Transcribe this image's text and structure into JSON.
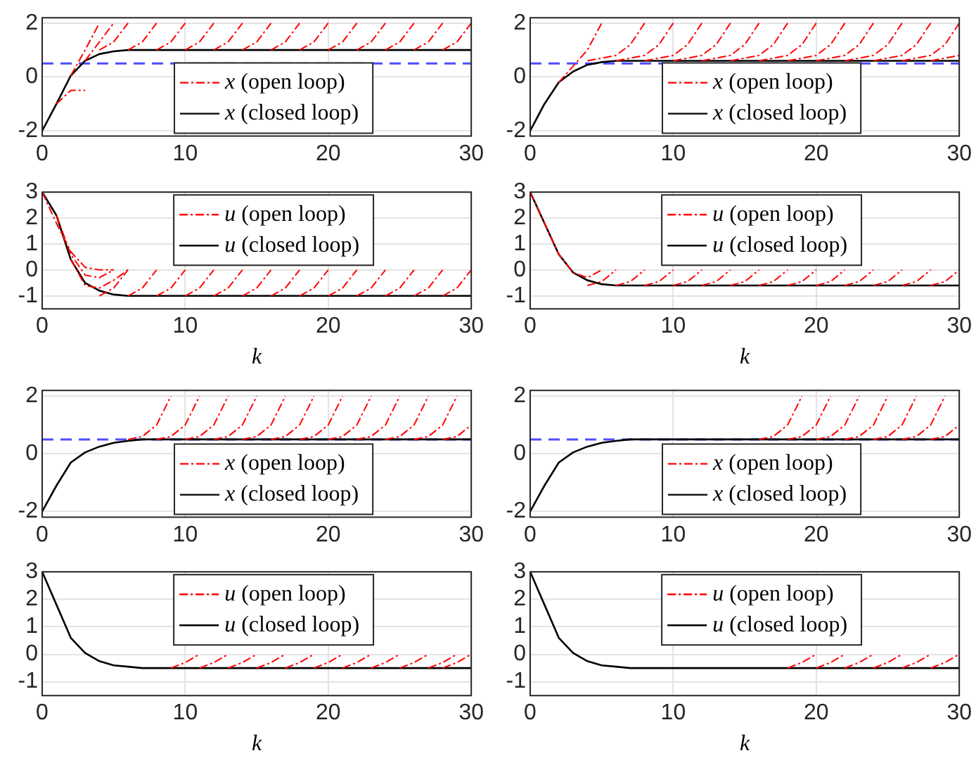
{
  "chart_data": [
    {
      "type": "line",
      "xlim": [
        0,
        30
      ],
      "xticks": [
        0,
        10,
        20,
        30
      ],
      "ylim": [
        -2.2,
        2.2
      ],
      "yticks": [
        -2,
        0,
        2
      ],
      "grid": true,
      "legend": "bottom",
      "ref_lines": [
        {
          "axis": "y",
          "value": 0.5,
          "color": "#4d4dff",
          "line_style": "dashed"
        }
      ],
      "series": [
        {
          "name": "x (open loop)",
          "color": "#ff0000",
          "line_style": "dashed",
          "x": [
            1,
            2,
            3
          ],
          "values": [
            -1,
            -0.5,
            -0.5
          ]
        },
        {
          "color": "#ff0000",
          "line_style": "dashed",
          "x": [
            2,
            3,
            4
          ],
          "values": [
            0.05,
            1,
            2
          ]
        },
        {
          "color": "#ff0000",
          "line_style": "dashed",
          "x": [
            3,
            4,
            5
          ],
          "values": [
            0.6,
            1.3,
            2
          ]
        },
        {
          "color": "#ff0000",
          "line_style": "dashed",
          "x": [
            4,
            5,
            6
          ],
          "values": [
            1,
            1.3,
            2
          ]
        },
        {
          "color": "#ff0000",
          "line_style": "dashed",
          "x": [
            6,
            7,
            8
          ],
          "values": [
            1,
            1.3,
            2
          ]
        },
        {
          "color": "#ff0000",
          "line_style": "dashed",
          "x": [
            8,
            9,
            10
          ],
          "values": [
            1,
            1.3,
            2
          ]
        },
        {
          "color": "#ff0000",
          "line_style": "dashed",
          "x": [
            10,
            11,
            12
          ],
          "values": [
            1,
            1.3,
            2
          ]
        },
        {
          "color": "#ff0000",
          "line_style": "dashed",
          "x": [
            12,
            13,
            14
          ],
          "values": [
            1,
            1.3,
            2
          ]
        },
        {
          "color": "#ff0000",
          "line_style": "dashed",
          "x": [
            14,
            15,
            16
          ],
          "values": [
            1,
            1.3,
            2
          ]
        },
        {
          "color": "#ff0000",
          "line_style": "dashed",
          "x": [
            16,
            17,
            18
          ],
          "values": [
            1,
            1.3,
            2
          ]
        },
        {
          "color": "#ff0000",
          "line_style": "dashed",
          "x": [
            18,
            19,
            20
          ],
          "values": [
            1,
            1.3,
            2
          ]
        },
        {
          "color": "#ff0000",
          "line_style": "dashed",
          "x": [
            20,
            21,
            22
          ],
          "values": [
            1,
            1.3,
            2
          ]
        },
        {
          "color": "#ff0000",
          "line_style": "dashed",
          "x": [
            22,
            23,
            24
          ],
          "values": [
            1,
            1.3,
            2
          ]
        },
        {
          "color": "#ff0000",
          "line_style": "dashed",
          "x": [
            24,
            25,
            26
          ],
          "values": [
            1,
            1.3,
            2
          ]
        },
        {
          "color": "#ff0000",
          "line_style": "dashed",
          "x": [
            26,
            27,
            28
          ],
          "values": [
            1,
            1.3,
            2
          ]
        },
        {
          "color": "#ff0000",
          "line_style": "dashed",
          "x": [
            28,
            29,
            30
          ],
          "values": [
            1,
            1.3,
            2
          ]
        },
        {
          "name": "x (closed loop)",
          "color": "#000000",
          "line_style": "solid",
          "x": [
            0,
            1,
            2,
            3,
            4,
            5,
            6,
            30
          ],
          "values": [
            -2,
            -1,
            0.05,
            0.6,
            0.85,
            0.95,
            1,
            1
          ]
        }
      ]
    },
    {
      "type": "line",
      "xlim": [
        0,
        30
      ],
      "xticks": [
        0,
        10,
        20,
        30
      ],
      "ylim": [
        -2.2,
        2.2
      ],
      "yticks": [
        -2,
        0,
        2
      ],
      "grid": true,
      "legend": "bottom",
      "ref_lines": [
        {
          "axis": "y",
          "value": 0.5,
          "color": "#4d4dff",
          "line_style": "dashed"
        }
      ],
      "series": [
        {
          "name": "x (open loop)",
          "color": "#ff0000",
          "line_style": "dashed",
          "x": [
            2,
            3,
            4,
            5
          ],
          "values": [
            -0.2,
            0.4,
            1,
            2
          ]
        },
        {
          "color": "#ff0000",
          "line_style": "dashed",
          "x": [
            4,
            6,
            7,
            8
          ],
          "values": [
            0.6,
            0.8,
            1.2,
            2
          ]
        },
        {
          "color": "#ff0000",
          "line_style": "dashed",
          "x": [
            6,
            8,
            9,
            10
          ],
          "values": [
            0.6,
            0.8,
            1.2,
            2
          ]
        },
        {
          "color": "#ff0000",
          "line_style": "dashed",
          "x": [
            8,
            10,
            11,
            12
          ],
          "values": [
            0.6,
            0.8,
            1.2,
            2
          ]
        },
        {
          "color": "#ff0000",
          "line_style": "dashed",
          "x": [
            10,
            12,
            13,
            14
          ],
          "values": [
            0.6,
            0.8,
            1.2,
            2
          ]
        },
        {
          "color": "#ff0000",
          "line_style": "dashed",
          "x": [
            12,
            14,
            15,
            16
          ],
          "values": [
            0.6,
            0.8,
            1.2,
            2
          ]
        },
        {
          "color": "#ff0000",
          "line_style": "dashed",
          "x": [
            14,
            16,
            17,
            18
          ],
          "values": [
            0.6,
            0.8,
            1.2,
            2
          ]
        },
        {
          "color": "#ff0000",
          "line_style": "dashed",
          "x": [
            16,
            18,
            19,
            20
          ],
          "values": [
            0.6,
            0.8,
            1.2,
            2
          ]
        },
        {
          "color": "#ff0000",
          "line_style": "dashed",
          "x": [
            18,
            20,
            21,
            22
          ],
          "values": [
            0.6,
            0.8,
            1.2,
            2
          ]
        },
        {
          "color": "#ff0000",
          "line_style": "dashed",
          "x": [
            20,
            22,
            23,
            24
          ],
          "values": [
            0.6,
            0.8,
            1.2,
            2
          ]
        },
        {
          "color": "#ff0000",
          "line_style": "dashed",
          "x": [
            22,
            24,
            25,
            26
          ],
          "values": [
            0.6,
            0.8,
            1.2,
            2
          ]
        },
        {
          "color": "#ff0000",
          "line_style": "dashed",
          "x": [
            24,
            26,
            27,
            28
          ],
          "values": [
            0.6,
            0.8,
            1.2,
            2
          ]
        },
        {
          "color": "#ff0000",
          "line_style": "dashed",
          "x": [
            26,
            28,
            29,
            30
          ],
          "values": [
            0.6,
            0.8,
            1.2,
            2
          ]
        },
        {
          "color": "#ff0000",
          "line_style": "dashed",
          "x": [
            28,
            30
          ],
          "values": [
            0.6,
            0.8
          ]
        },
        {
          "name": "x (closed loop)",
          "color": "#000000",
          "line_style": "solid",
          "x": [
            0,
            1,
            2,
            3,
            4,
            5,
            6,
            30
          ],
          "values": [
            -2,
            -1,
            -0.2,
            0.2,
            0.45,
            0.55,
            0.6,
            0.6
          ]
        }
      ]
    },
    {
      "type": "line",
      "xlabel": "k",
      "xlim": [
        0,
        30
      ],
      "xticks": [
        0,
        10,
        20,
        30
      ],
      "ylim": [
        -1.5,
        3
      ],
      "yticks": [
        -1,
        0,
        1,
        2,
        3
      ],
      "grid": true,
      "legend": "top",
      "series": [
        {
          "name": "u (open loop)",
          "color": "#ff0000",
          "line_style": "dashed",
          "x": [
            0,
            1,
            2,
            3,
            4,
            5
          ],
          "values": [
            3,
            1.8,
            0.7,
            0.1,
            0,
            0
          ]
        },
        {
          "color": "#ff0000",
          "line_style": "dashed",
          "x": [
            1,
            2,
            3,
            4,
            5
          ],
          "values": [
            2.1,
            0.6,
            -0.2,
            -0.3,
            0
          ]
        },
        {
          "color": "#ff0000",
          "line_style": "dashed",
          "x": [
            2,
            3,
            4,
            5,
            6
          ],
          "values": [
            0.4,
            -0.6,
            -0.7,
            -0.4,
            0
          ]
        },
        {
          "color": "#ff0000",
          "line_style": "dashed",
          "x": [
            4,
            5,
            6
          ],
          "values": [
            -1,
            -0.7,
            0
          ]
        },
        {
          "color": "#ff0000",
          "line_style": "dashed",
          "x": [
            6,
            7,
            8
          ],
          "values": [
            -1,
            -0.7,
            0
          ]
        },
        {
          "color": "#ff0000",
          "line_style": "dashed",
          "x": [
            8,
            9,
            10
          ],
          "values": [
            -1,
            -0.7,
            0
          ]
        },
        {
          "color": "#ff0000",
          "line_style": "dashed",
          "x": [
            10,
            11,
            12
          ],
          "values": [
            -1,
            -0.7,
            0
          ]
        },
        {
          "color": "#ff0000",
          "line_style": "dashed",
          "x": [
            12,
            13,
            14
          ],
          "values": [
            -1,
            -0.7,
            0
          ]
        },
        {
          "color": "#ff0000",
          "line_style": "dashed",
          "x": [
            14,
            15,
            16
          ],
          "values": [
            -1,
            -0.7,
            0
          ]
        },
        {
          "color": "#ff0000",
          "line_style": "dashed",
          "x": [
            16,
            17,
            18
          ],
          "values": [
            -1,
            -0.7,
            0
          ]
        },
        {
          "color": "#ff0000",
          "line_style": "dashed",
          "x": [
            18,
            19,
            20
          ],
          "values": [
            -1,
            -0.7,
            0
          ]
        },
        {
          "color": "#ff0000",
          "line_style": "dashed",
          "x": [
            20,
            21,
            22
          ],
          "values": [
            -1,
            -0.7,
            0
          ]
        },
        {
          "color": "#ff0000",
          "line_style": "dashed",
          "x": [
            22,
            23,
            24
          ],
          "values": [
            -1,
            -0.7,
            0
          ]
        },
        {
          "color": "#ff0000",
          "line_style": "dashed",
          "x": [
            24,
            25,
            26
          ],
          "values": [
            -1,
            -0.7,
            0
          ]
        },
        {
          "color": "#ff0000",
          "line_style": "dashed",
          "x": [
            26,
            27,
            28
          ],
          "values": [
            -1,
            -0.7,
            0
          ]
        },
        {
          "color": "#ff0000",
          "line_style": "dashed",
          "x": [
            28,
            29,
            30
          ],
          "values": [
            -1,
            -0.7,
            0
          ]
        },
        {
          "name": "u (closed loop)",
          "color": "#000000",
          "line_style": "solid",
          "x": [
            0,
            1,
            2,
            3,
            4,
            5,
            6,
            30
          ],
          "values": [
            3,
            2.1,
            0.4,
            -0.5,
            -0.8,
            -0.95,
            -1,
            -1
          ]
        }
      ]
    },
    {
      "type": "line",
      "xlabel": "k",
      "xlim": [
        0,
        30
      ],
      "xticks": [
        0,
        10,
        20,
        30
      ],
      "ylim": [
        -1.5,
        3
      ],
      "yticks": [
        -1,
        0,
        1,
        2,
        3
      ],
      "grid": true,
      "legend": "top",
      "series": [
        {
          "name": "u (open loop)",
          "color": "#ff0000",
          "line_style": "dashed",
          "x": [
            0,
            1,
            2,
            3,
            4,
            5
          ],
          "values": [
            3,
            1.8,
            0.6,
            -0.1,
            -0.3,
            0
          ]
        },
        {
          "color": "#ff0000",
          "line_style": "dashed",
          "x": [
            4,
            5,
            6
          ],
          "values": [
            -0.6,
            -0.45,
            0
          ]
        },
        {
          "color": "#ff0000",
          "line_style": "dashed",
          "x": [
            6,
            7,
            8
          ],
          "values": [
            -0.6,
            -0.45,
            0
          ]
        },
        {
          "color": "#ff0000",
          "line_style": "dashed",
          "x": [
            8,
            9,
            10
          ],
          "values": [
            -0.6,
            -0.45,
            0
          ]
        },
        {
          "color": "#ff0000",
          "line_style": "dashed",
          "x": [
            10,
            11,
            12
          ],
          "values": [
            -0.6,
            -0.45,
            0
          ]
        },
        {
          "color": "#ff0000",
          "line_style": "dashed",
          "x": [
            12,
            13,
            14
          ],
          "values": [
            -0.6,
            -0.45,
            0
          ]
        },
        {
          "color": "#ff0000",
          "line_style": "dashed",
          "x": [
            14,
            15,
            16
          ],
          "values": [
            -0.6,
            -0.45,
            0
          ]
        },
        {
          "color": "#ff0000",
          "line_style": "dashed",
          "x": [
            16,
            17,
            18
          ],
          "values": [
            -0.6,
            -0.45,
            0
          ]
        },
        {
          "color": "#ff0000",
          "line_style": "dashed",
          "x": [
            18,
            19,
            20
          ],
          "values": [
            -0.6,
            -0.45,
            0
          ]
        },
        {
          "color": "#ff0000",
          "line_style": "dashed",
          "x": [
            20,
            21,
            22
          ],
          "values": [
            -0.6,
            -0.45,
            0
          ]
        },
        {
          "color": "#ff0000",
          "line_style": "dashed",
          "x": [
            22,
            23,
            24
          ],
          "values": [
            -0.6,
            -0.45,
            0
          ]
        },
        {
          "color": "#ff0000",
          "line_style": "dashed",
          "x": [
            24,
            25,
            26
          ],
          "values": [
            -0.6,
            -0.45,
            0
          ]
        },
        {
          "color": "#ff0000",
          "line_style": "dashed",
          "x": [
            26,
            27,
            28
          ],
          "values": [
            -0.6,
            -0.45,
            0
          ]
        },
        {
          "color": "#ff0000",
          "line_style": "dashed",
          "x": [
            28,
            29,
            30
          ],
          "values": [
            -0.6,
            -0.45,
            0
          ]
        },
        {
          "name": "u (closed loop)",
          "color": "#000000",
          "line_style": "solid",
          "x": [
            0,
            1,
            2,
            3,
            4,
            5,
            6,
            30
          ],
          "values": [
            3,
            1.8,
            0.6,
            -0.1,
            -0.4,
            -0.55,
            -0.6,
            -0.6
          ]
        }
      ]
    },
    {
      "type": "line",
      "xlim": [
        0,
        30
      ],
      "xticks": [
        0,
        10,
        20,
        30
      ],
      "ylim": [
        -2.2,
        2.2
      ],
      "yticks": [
        -2,
        0,
        2
      ],
      "grid": true,
      "legend": "bottom",
      "ref_lines": [
        {
          "axis": "y",
          "value": 0.5,
          "color": "#4d4dff",
          "line_style": "dashed"
        }
      ],
      "series": [
        {
          "name": "x (open loop)",
          "color": "#ff0000",
          "line_style": "dashed",
          "x": [
            6,
            7,
            8,
            9
          ],
          "values": [
            0.5,
            0.6,
            1,
            2
          ]
        },
        {
          "color": "#ff0000",
          "line_style": "dashed",
          "x": [
            8,
            9,
            10,
            11
          ],
          "values": [
            0.5,
            0.6,
            1,
            2
          ]
        },
        {
          "color": "#ff0000",
          "line_style": "dashed",
          "x": [
            10,
            11,
            12,
            13
          ],
          "values": [
            0.5,
            0.6,
            1,
            2
          ]
        },
        {
          "color": "#ff0000",
          "line_style": "dashed",
          "x": [
            12,
            13,
            14,
            15
          ],
          "values": [
            0.5,
            0.6,
            1,
            2
          ]
        },
        {
          "color": "#ff0000",
          "line_style": "dashed",
          "x": [
            14,
            15,
            16,
            17
          ],
          "values": [
            0.5,
            0.6,
            1,
            2
          ]
        },
        {
          "color": "#ff0000",
          "line_style": "dashed",
          "x": [
            16,
            17,
            18,
            19
          ],
          "values": [
            0.5,
            0.6,
            1,
            2
          ]
        },
        {
          "color": "#ff0000",
          "line_style": "dashed",
          "x": [
            18,
            19,
            20,
            21
          ],
          "values": [
            0.5,
            0.6,
            1,
            2
          ]
        },
        {
          "color": "#ff0000",
          "line_style": "dashed",
          "x": [
            20,
            21,
            22,
            23
          ],
          "values": [
            0.5,
            0.6,
            1,
            2
          ]
        },
        {
          "color": "#ff0000",
          "line_style": "dashed",
          "x": [
            22,
            23,
            24,
            25
          ],
          "values": [
            0.5,
            0.6,
            1,
            2
          ]
        },
        {
          "color": "#ff0000",
          "line_style": "dashed",
          "x": [
            24,
            25,
            26,
            27
          ],
          "values": [
            0.5,
            0.6,
            1,
            2
          ]
        },
        {
          "color": "#ff0000",
          "line_style": "dashed",
          "x": [
            26,
            27,
            28,
            29
          ],
          "values": [
            0.5,
            0.6,
            1,
            2
          ]
        },
        {
          "color": "#ff0000",
          "line_style": "dashed",
          "x": [
            28,
            29,
            30
          ],
          "values": [
            0.5,
            0.6,
            1
          ]
        },
        {
          "name": "x (closed loop)",
          "color": "#000000",
          "line_style": "solid",
          "x": [
            0,
            1,
            2,
            3,
            4,
            5,
            6,
            7,
            30
          ],
          "values": [
            -2,
            -1.1,
            -0.3,
            0.05,
            0.25,
            0.38,
            0.45,
            0.5,
            0.5
          ]
        }
      ]
    },
    {
      "type": "line",
      "xlim": [
        0,
        30
      ],
      "xticks": [
        0,
        10,
        20,
        30
      ],
      "ylim": [
        -2.2,
        2.2
      ],
      "yticks": [
        -2,
        0,
        2
      ],
      "grid": true,
      "legend": "bottom",
      "ref_lines": [
        {
          "axis": "y",
          "value": 0.5,
          "color": "#4d4dff",
          "line_style": "dashed"
        }
      ],
      "series": [
        {
          "name": "x (open loop)",
          "color": "#ff0000",
          "line_style": "dashed",
          "x": [
            16,
            17,
            18,
            19
          ],
          "values": [
            0.5,
            0.6,
            1,
            2
          ]
        },
        {
          "color": "#ff0000",
          "line_style": "dashed",
          "x": [
            18,
            19,
            20,
            21
          ],
          "values": [
            0.5,
            0.6,
            1,
            2
          ]
        },
        {
          "color": "#ff0000",
          "line_style": "dashed",
          "x": [
            20,
            21,
            22,
            23
          ],
          "values": [
            0.5,
            0.6,
            1,
            2
          ]
        },
        {
          "color": "#ff0000",
          "line_style": "dashed",
          "x": [
            22,
            23,
            24,
            25
          ],
          "values": [
            0.5,
            0.6,
            1,
            2
          ]
        },
        {
          "color": "#ff0000",
          "line_style": "dashed",
          "x": [
            24,
            25,
            26,
            27
          ],
          "values": [
            0.5,
            0.6,
            1,
            2
          ]
        },
        {
          "color": "#ff0000",
          "line_style": "dashed",
          "x": [
            26,
            27,
            28,
            29
          ],
          "values": [
            0.5,
            0.6,
            1,
            2
          ]
        },
        {
          "color": "#ff0000",
          "line_style": "dashed",
          "x": [
            28,
            29,
            30
          ],
          "values": [
            0.5,
            0.6,
            1
          ]
        },
        {
          "name": "x (closed loop)",
          "color": "#000000",
          "line_style": "solid",
          "x": [
            0,
            1,
            2,
            3,
            4,
            5,
            6,
            7,
            30
          ],
          "values": [
            -2,
            -1.1,
            -0.3,
            0.05,
            0.25,
            0.38,
            0.45,
            0.5,
            0.5
          ]
        }
      ]
    },
    {
      "type": "line",
      "xlabel": "k",
      "xlim": [
        0,
        30
      ],
      "xticks": [
        0,
        10,
        20,
        30
      ],
      "ylim": [
        -1.5,
        3
      ],
      "yticks": [
        -1,
        0,
        1,
        2,
        3
      ],
      "grid": true,
      "legend": "top",
      "series": [
        {
          "name": "u (open loop)",
          "color": "#ff0000",
          "line_style": "dashed",
          "x": [
            9,
            10,
            11
          ],
          "values": [
            -0.5,
            -0.3,
            0
          ]
        },
        {
          "color": "#ff0000",
          "line_style": "dashed",
          "x": [
            11,
            12,
            13
          ],
          "values": [
            -0.5,
            -0.3,
            0
          ]
        },
        {
          "color": "#ff0000",
          "line_style": "dashed",
          "x": [
            13,
            14,
            15
          ],
          "values": [
            -0.5,
            -0.3,
            0
          ]
        },
        {
          "color": "#ff0000",
          "line_style": "dashed",
          "x": [
            15,
            16,
            17
          ],
          "values": [
            -0.5,
            -0.3,
            0
          ]
        },
        {
          "color": "#ff0000",
          "line_style": "dashed",
          "x": [
            17,
            18,
            19
          ],
          "values": [
            -0.5,
            -0.3,
            0
          ]
        },
        {
          "color": "#ff0000",
          "line_style": "dashed",
          "x": [
            19,
            20,
            21
          ],
          "values": [
            -0.5,
            -0.3,
            0
          ]
        },
        {
          "color": "#ff0000",
          "line_style": "dashed",
          "x": [
            21,
            22,
            23
          ],
          "values": [
            -0.5,
            -0.3,
            0
          ]
        },
        {
          "color": "#ff0000",
          "line_style": "dashed",
          "x": [
            23,
            24,
            25
          ],
          "values": [
            -0.5,
            -0.3,
            0
          ]
        },
        {
          "color": "#ff0000",
          "line_style": "dashed",
          "x": [
            25,
            26,
            27
          ],
          "values": [
            -0.5,
            -0.3,
            0
          ]
        },
        {
          "color": "#ff0000",
          "line_style": "dashed",
          "x": [
            27,
            28,
            29
          ],
          "values": [
            -0.5,
            -0.3,
            0
          ]
        },
        {
          "color": "#ff0000",
          "line_style": "dashed",
          "x": [
            28,
            29,
            30
          ],
          "values": [
            -0.5,
            -0.3,
            0
          ]
        },
        {
          "name": "u (closed loop)",
          "color": "#000000",
          "line_style": "solid",
          "x": [
            0,
            1,
            2,
            3,
            4,
            5,
            6,
            7,
            30
          ],
          "values": [
            3,
            1.8,
            0.6,
            0.05,
            -0.25,
            -0.4,
            -0.45,
            -0.5,
            -0.5
          ]
        }
      ]
    },
    {
      "type": "line",
      "xlabel": "k",
      "xlim": [
        0,
        30
      ],
      "xticks": [
        0,
        10,
        20,
        30
      ],
      "ylim": [
        -1.5,
        3
      ],
      "yticks": [
        -1,
        0,
        1,
        2,
        3
      ],
      "grid": true,
      "legend": "top",
      "series": [
        {
          "name": "u (open loop)",
          "color": "#ff0000",
          "line_style": "dashed",
          "x": [
            18,
            19,
            20
          ],
          "values": [
            -0.5,
            -0.3,
            0
          ]
        },
        {
          "color": "#ff0000",
          "line_style": "dashed",
          "x": [
            20,
            21,
            22
          ],
          "values": [
            -0.5,
            -0.3,
            0
          ]
        },
        {
          "color": "#ff0000",
          "line_style": "dashed",
          "x": [
            22,
            23,
            24
          ],
          "values": [
            -0.5,
            -0.3,
            0
          ]
        },
        {
          "color": "#ff0000",
          "line_style": "dashed",
          "x": [
            24,
            25,
            26
          ],
          "values": [
            -0.5,
            -0.3,
            0
          ]
        },
        {
          "color": "#ff0000",
          "line_style": "dashed",
          "x": [
            26,
            27,
            28
          ],
          "values": [
            -0.5,
            -0.3,
            0
          ]
        },
        {
          "color": "#ff0000",
          "line_style": "dashed",
          "x": [
            28,
            29,
            30
          ],
          "values": [
            -0.5,
            -0.3,
            0
          ]
        },
        {
          "name": "u (closed loop)",
          "color": "#000000",
          "line_style": "solid",
          "x": [
            0,
            1,
            2,
            3,
            4,
            5,
            6,
            7,
            30
          ],
          "values": [
            3,
            1.8,
            0.6,
            0.05,
            -0.25,
            -0.4,
            -0.45,
            -0.5,
            -0.5
          ]
        }
      ]
    }
  ]
}
